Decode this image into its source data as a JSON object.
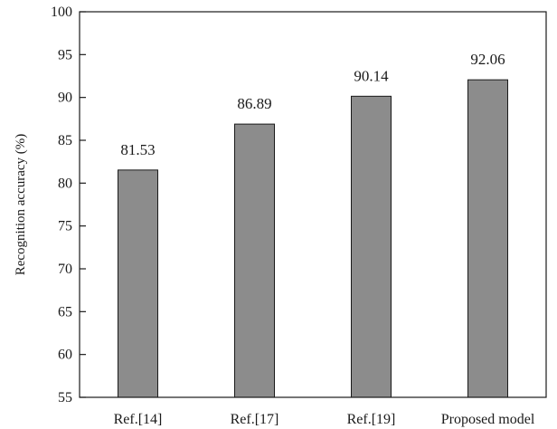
{
  "chart_data": {
    "type": "bar",
    "categories": [
      "Ref.[14]",
      "Ref.[17]",
      "Ref.[19]",
      "Proposed model"
    ],
    "values": [
      81.53,
      86.89,
      90.14,
      92.06
    ],
    "data_labels": [
      "81.53",
      "86.89",
      "90.14",
      "92.06"
    ],
    "title": "",
    "xlabel": "",
    "ylabel": "Recognition accuracy (%)",
    "ylim": [
      55,
      100
    ],
    "yticks": [
      55,
      60,
      65,
      70,
      75,
      80,
      85,
      90,
      95,
      100
    ],
    "grid": false,
    "legend": "none",
    "bar_color": "#8c8c8c",
    "bar_edge_color": "#1a1a1a"
  }
}
